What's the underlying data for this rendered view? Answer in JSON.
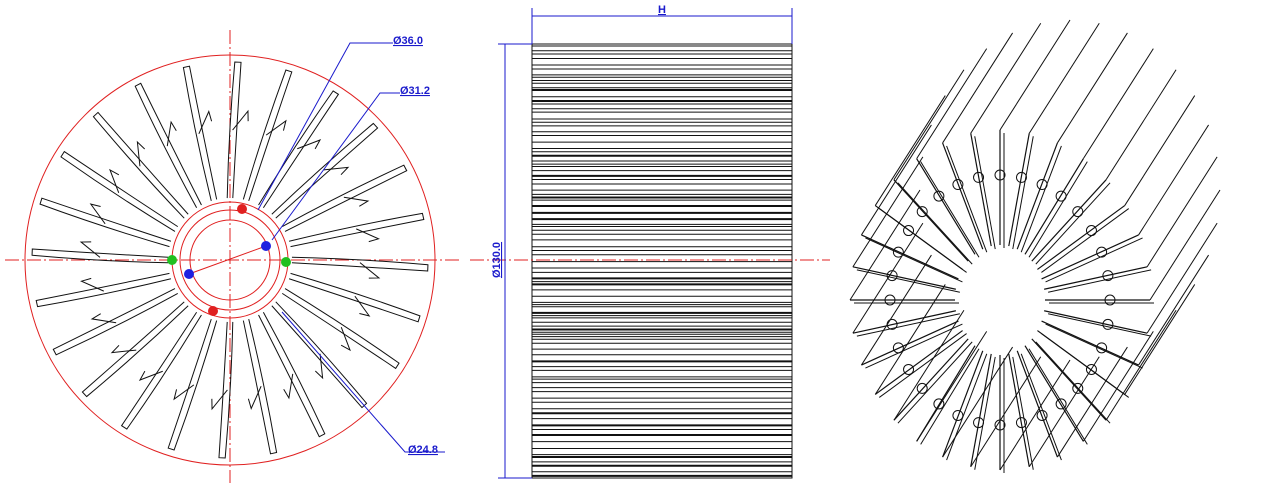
{
  "dimensions": {
    "d_outer_ring": "Ø36.0",
    "d_middle_ring": "Ø31.2",
    "d_inner_ring": "Ø24.8",
    "height": "H",
    "outer_diameter": "Ø130.0"
  }
}
